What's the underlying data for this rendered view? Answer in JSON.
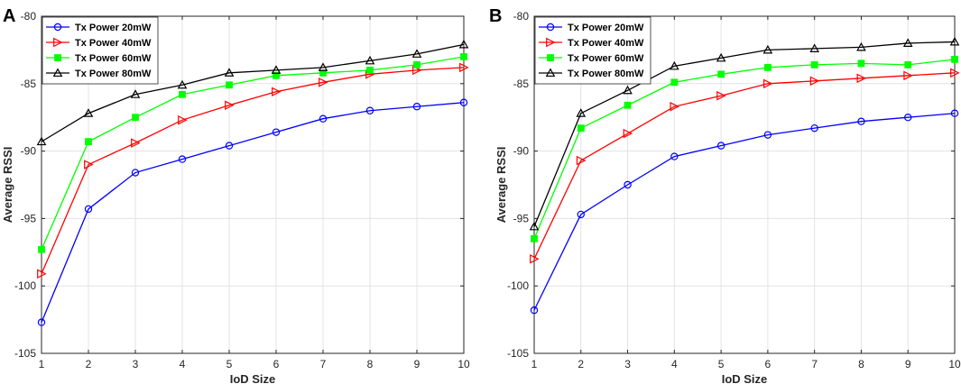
{
  "chart_data": [
    {
      "type": "line",
      "panel_label": "A",
      "title": "",
      "xlabel": "IoD Size",
      "ylabel": "Average RSSI",
      "x": [
        1,
        2,
        3,
        4,
        5,
        6,
        7,
        8,
        9,
        10
      ],
      "xlim": [
        1,
        10
      ],
      "ylim": [
        -105,
        -80
      ],
      "xticks": [
        "1",
        "2",
        "3",
        "4",
        "5",
        "6",
        "7",
        "8",
        "9",
        "10"
      ],
      "yticks": [
        "-80",
        "-85",
        "-90",
        "-95",
        "-100",
        "-105"
      ],
      "grid": true,
      "legend_position": "top-left",
      "series": [
        {
          "name": "Tx Power 20mW",
          "color": "#0000ff",
          "marker": "circle",
          "values": [
            -102.7,
            -94.3,
            -91.6,
            -90.6,
            -89.6,
            -88.6,
            -87.6,
            -87.0,
            -86.7,
            -86.4
          ]
        },
        {
          "name": "Tx Power 40mW",
          "color": "#ff0000",
          "marker": "triangle-right",
          "values": [
            -99.1,
            -91.0,
            -89.4,
            -87.7,
            -86.6,
            -85.6,
            -84.9,
            -84.3,
            -84.0,
            -83.8
          ]
        },
        {
          "name": "Tx Power 60mW",
          "color": "#00ff00",
          "marker": "square",
          "values": [
            -97.3,
            -89.3,
            -87.5,
            -85.8,
            -85.1,
            -84.4,
            -84.2,
            -84.0,
            -83.6,
            -83.0
          ]
        },
        {
          "name": "Tx Power 80mW",
          "color": "#000000",
          "marker": "triangle-up",
          "values": [
            -89.3,
            -87.2,
            -85.8,
            -85.1,
            -84.2,
            -84.0,
            -83.8,
            -83.3,
            -82.8,
            -82.1
          ]
        }
      ]
    },
    {
      "type": "line",
      "panel_label": "B",
      "title": "",
      "xlabel": "IoD Size",
      "ylabel": "Average RSSI",
      "x": [
        1,
        2,
        3,
        4,
        5,
        6,
        7,
        8,
        9,
        10
      ],
      "xlim": [
        1,
        10
      ],
      "ylim": [
        -105,
        -80
      ],
      "xticks": [
        "1",
        "2",
        "3",
        "4",
        "5",
        "6",
        "7",
        "8",
        "9",
        "10"
      ],
      "yticks": [
        "-80",
        "-85",
        "-90",
        "-95",
        "-100",
        "-105"
      ],
      "grid": true,
      "legend_position": "top-left",
      "series": [
        {
          "name": "Tx Power 20mW",
          "color": "#0000ff",
          "marker": "circle",
          "values": [
            -101.8,
            -94.7,
            -92.5,
            -90.4,
            -89.6,
            -88.8,
            -88.3,
            -87.8,
            -87.5,
            -87.2
          ]
        },
        {
          "name": "Tx Power 40mW",
          "color": "#ff0000",
          "marker": "triangle-right",
          "values": [
            -98.0,
            -90.7,
            -88.7,
            -86.7,
            -85.9,
            -85.0,
            -84.8,
            -84.6,
            -84.4,
            -84.2
          ]
        },
        {
          "name": "Tx Power 60mW",
          "color": "#00ff00",
          "marker": "square",
          "values": [
            -96.5,
            -88.3,
            -86.6,
            -84.9,
            -84.3,
            -83.8,
            -83.6,
            -83.5,
            -83.6,
            -83.2
          ]
        },
        {
          "name": "Tx Power 80mW",
          "color": "#000000",
          "marker": "triangle-up",
          "values": [
            -95.6,
            -87.2,
            -85.5,
            -83.7,
            -83.1,
            -82.5,
            -82.4,
            -82.3,
            -82.0,
            -81.9
          ]
        }
      ]
    }
  ]
}
